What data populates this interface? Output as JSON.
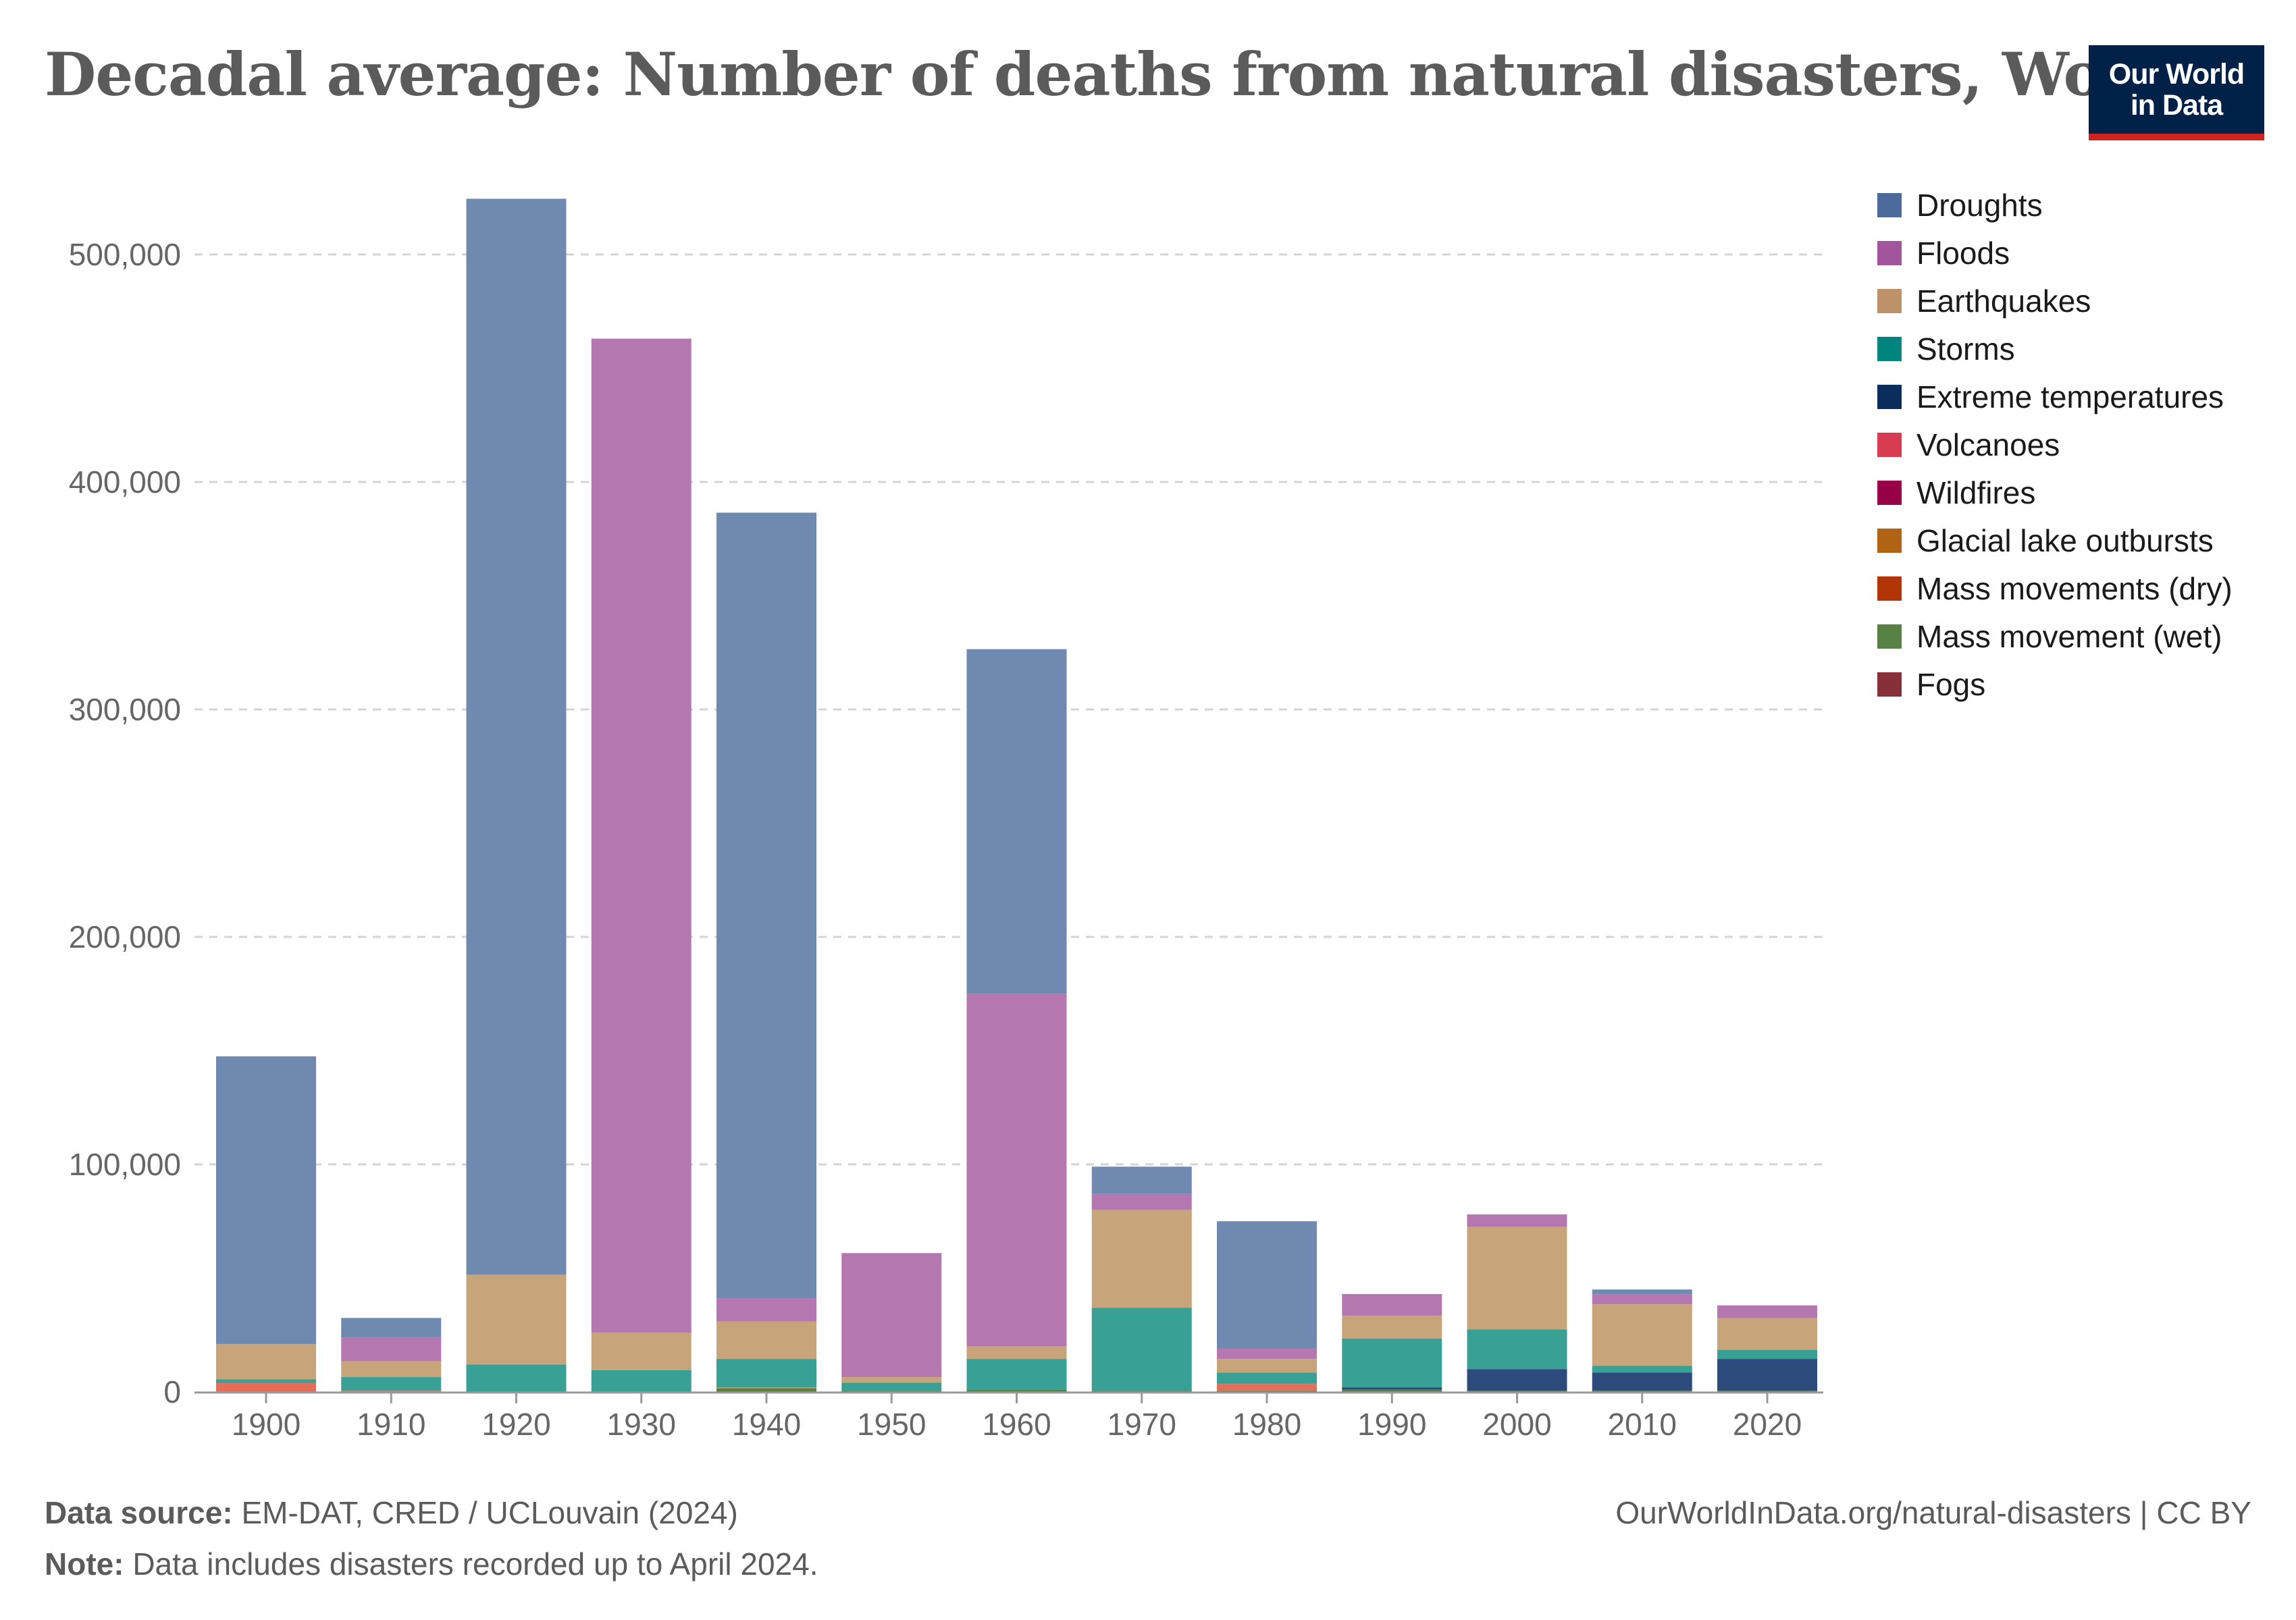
{
  "header": {
    "title": "Decadal average: Number of deaths from natural disasters, World",
    "logo_line1": "Our World",
    "logo_line2": "in Data"
  },
  "footer": {
    "source_label": "Data source:",
    "source_text": "EM-DAT, CRED / UCLouvain (2024)",
    "note_label": "Note:",
    "note_text": "Data includes disasters recorded up to April 2024.",
    "url_text": "OurWorldInData.org/natural-disasters | CC BY"
  },
  "chart_data": {
    "type": "bar",
    "stacked": true,
    "title": "Decadal average: Number of deaths from natural disasters, World",
    "xlabel": "",
    "ylabel": "",
    "ylim": [
      0,
      530000
    ],
    "yticks": [
      0,
      100000,
      200000,
      300000,
      400000,
      500000
    ],
    "ytick_labels": [
      "0",
      "100,000",
      "200,000",
      "300,000",
      "400,000",
      "500,000"
    ],
    "grid": true,
    "legend_position": "right",
    "categories": [
      "1900",
      "1910",
      "1920",
      "1930",
      "1940",
      "1950",
      "1960",
      "1970",
      "1980",
      "1990",
      "2000",
      "2010",
      "2020"
    ],
    "series": [
      {
        "name": "Fogs",
        "color": "#883039",
        "values": [
          0,
          0,
          0,
          0,
          0,
          0,
          0,
          0,
          0,
          0,
          0,
          0,
          0
        ]
      },
      {
        "name": "Mass movement (wet)",
        "color": "#578145",
        "values": [
          0,
          0,
          0,
          0,
          1500,
          500,
          1000,
          500,
          500,
          1000,
          500,
          500,
          500
        ]
      },
      {
        "name": "Mass movements (dry)",
        "color": "#b13507",
        "values": [
          0,
          0,
          0,
          0,
          0,
          0,
          0,
          0,
          0,
          0,
          0,
          0,
          0
        ]
      },
      {
        "name": "Glacial lake outbursts",
        "color": "#bc8e5a",
        "values": [
          0,
          0,
          0,
          0,
          500,
          0,
          0,
          0,
          0,
          0,
          0,
          0,
          0
        ]
      },
      {
        "name": "Wildfires",
        "color": "#970046",
        "values": [
          0,
          0,
          0,
          0,
          0,
          0,
          0,
          0,
          0,
          0,
          0,
          0,
          0
        ]
      },
      {
        "name": "Volcanoes",
        "color": "#e56e5a",
        "values": [
          4000,
          500,
          0,
          0,
          0,
          0,
          0,
          0,
          3000,
          0,
          0,
          0,
          0
        ]
      },
      {
        "name": "Extreme temperatures",
        "color": "#2c4a7c",
        "values": [
          0,
          0,
          0,
          0,
          0,
          0,
          0,
          0,
          0,
          1000,
          9500,
          8000,
          14000
        ]
      },
      {
        "name": "Storms",
        "color": "#38a095",
        "values": [
          1500,
          6000,
          12000,
          9500,
          12500,
          3500,
          13500,
          36500,
          5000,
          21500,
          17500,
          3000,
          4000
        ]
      },
      {
        "name": "Earthquakes",
        "color": "#c7a479",
        "values": [
          15500,
          7000,
          39500,
          16500,
          16500,
          2500,
          5500,
          43000,
          6000,
          10000,
          45000,
          27000,
          14000
        ]
      },
      {
        "name": "Floods",
        "color": "#b577b0",
        "values": [
          0,
          10500,
          0,
          437000,
          10000,
          54500,
          155000,
          7000,
          4500,
          9500,
          5500,
          4500,
          5500
        ]
      },
      {
        "name": "Droughts",
        "color": "#6f89b1",
        "values": [
          126500,
          8500,
          473000,
          0,
          345500,
          0,
          151500,
          12000,
          56000,
          0,
          0,
          2000,
          0
        ]
      }
    ]
  },
  "legend": {
    "items": [
      {
        "label": "Droughts",
        "color": "#4c6a9c"
      },
      {
        "label": "Floods",
        "color": "#a2559c"
      },
      {
        "label": "Earthquakes",
        "color": "#be9268"
      },
      {
        "label": "Storms",
        "color": "#00847e"
      },
      {
        "label": "Extreme temperatures",
        "color": "#0b2d5c"
      },
      {
        "label": "Volcanoes",
        "color": "#d73c50"
      },
      {
        "label": "Wildfires",
        "color": "#970046"
      },
      {
        "label": "Glacial lake outbursts",
        "color": "#b16214"
      },
      {
        "label": "Mass movements (dry)",
        "color": "#b13507"
      },
      {
        "label": "Mass movement (wet)",
        "color": "#578145"
      },
      {
        "label": "Fogs",
        "color": "#883039"
      }
    ]
  }
}
